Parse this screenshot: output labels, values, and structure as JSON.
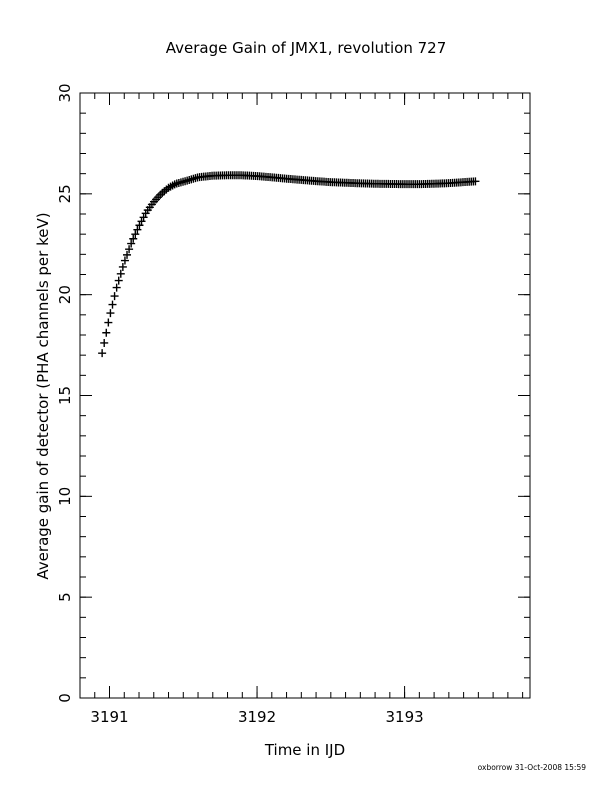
{
  "chart_data": {
    "type": "scatter",
    "title": "Average Gain of JMX1, revolution 727",
    "xlabel": "Time in IJD",
    "ylabel": "Average gain of detector (PHA channels per keV)",
    "xlim": [
      3190.8,
      3193.85
    ],
    "ylim": [
      0,
      30
    ],
    "xticks": [
      3191,
      3192,
      3193
    ],
    "yticks": [
      0,
      5,
      10,
      15,
      20,
      25,
      30
    ],
    "x_minor_step": 0.1,
    "y_minor_step": 1,
    "grid": false,
    "marker": "plus",
    "series": [
      {
        "x": [
          3190.95,
          3191.0,
          3191.05,
          3191.1,
          3191.15,
          3191.2,
          3191.25,
          3191.3,
          3191.35,
          3191.4,
          3191.45,
          3191.5,
          3191.6,
          3191.7,
          3191.8,
          3191.9,
          3192.0,
          3192.1,
          3192.2,
          3192.3,
          3192.4,
          3192.5,
          3192.6,
          3192.7,
          3192.8,
          3192.9,
          3193.0,
          3193.1,
          3193.2,
          3193.3,
          3193.4,
          3193.48
        ],
        "y": [
          17.1,
          18.9,
          20.4,
          21.6,
          22.6,
          23.4,
          24.1,
          24.6,
          25.0,
          25.3,
          25.5,
          25.6,
          25.82,
          25.9,
          25.92,
          25.92,
          25.88,
          25.82,
          25.75,
          25.69,
          25.63,
          25.58,
          25.55,
          25.52,
          25.5,
          25.49,
          25.48,
          25.48,
          25.5,
          25.53,
          25.58,
          25.62
        ]
      }
    ]
  },
  "footer": {
    "credit": "oxborrow 31-Oct-2008 15:59"
  }
}
